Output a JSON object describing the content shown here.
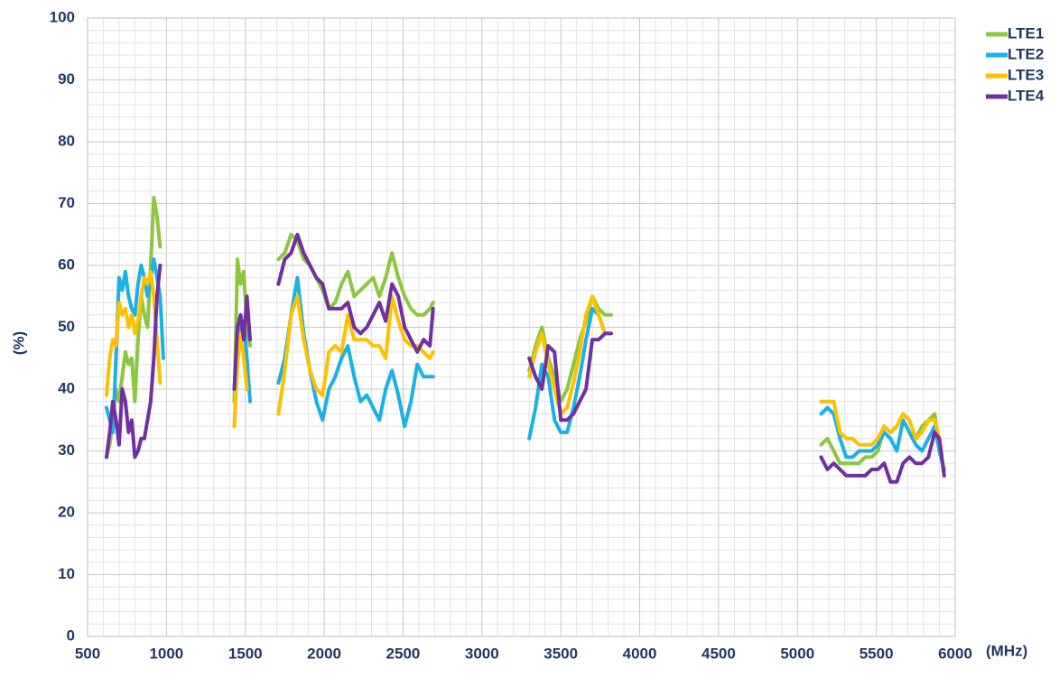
{
  "chart_data": {
    "type": "line",
    "x_label": "(MHz)",
    "y_label": "(%)",
    "x": [
      620,
      640,
      660,
      680,
      700,
      720,
      740,
      760,
      780,
      800,
      820,
      840,
      860,
      880,
      900,
      920,
      940,
      960,
      980,
      null,
      1430,
      1450,
      1470,
      1490,
      1510,
      1530,
      null,
      1710,
      1750,
      1790,
      1830,
      1870,
      1910,
      1950,
      1990,
      2030,
      2070,
      2110,
      2150,
      2190,
      2230,
      2270,
      2310,
      2350,
      2390,
      2430,
      2470,
      2510,
      2550,
      2590,
      2630,
      2670,
      2690,
      null,
      3300,
      3340,
      3380,
      3420,
      3460,
      3500,
      3540,
      3580,
      3620,
      3660,
      3700,
      3740,
      3780,
      3820,
      null,
      5150,
      5190,
      5230,
      5270,
      5310,
      5350,
      5390,
      5430,
      5470,
      5510,
      5550,
      5590,
      5630,
      5670,
      5710,
      5750,
      5790,
      5830,
      5870,
      5900,
      5930
    ],
    "series": [
      {
        "name": "LTE1",
        "color": "#8dc63f",
        "values": [
          29,
          31,
          35,
          40,
          38,
          42,
          46,
          44,
          45,
          38,
          48,
          55,
          52,
          50,
          60,
          71,
          68,
          63,
          null,
          null,
          38,
          61,
          57,
          59,
          50,
          47,
          null,
          61,
          62,
          65,
          64,
          61,
          60,
          58,
          56,
          53,
          54,
          57,
          59,
          55,
          56,
          57,
          58,
          55,
          58,
          62,
          58,
          55,
          53,
          52,
          52,
          53,
          54,
          null,
          43,
          47,
          50,
          45,
          42,
          38,
          40,
          44,
          48,
          51,
          55,
          53,
          52,
          52,
          null,
          31,
          32,
          30,
          28,
          28,
          28,
          28,
          29,
          29,
          30,
          34,
          33,
          34,
          36,
          35,
          32,
          34,
          35,
          36,
          30,
          27
        ]
      },
      {
        "name": "LTE2",
        "color": "#1ab0e8",
        "values": [
          37,
          35,
          33,
          45,
          58,
          56,
          59,
          55,
          53,
          52,
          57,
          60,
          58,
          55,
          58,
          61,
          58,
          55,
          45,
          null,
          40,
          47,
          50,
          51,
          45,
          38,
          null,
          41,
          45,
          52,
          58,
          49,
          43,
          38,
          35,
          40,
          42,
          45,
          47,
          42,
          38,
          39,
          37,
          35,
          40,
          43,
          39,
          34,
          38,
          44,
          42,
          42,
          42,
          null,
          32,
          37,
          44,
          42,
          35,
          33,
          33,
          37,
          42,
          48,
          53,
          52,
          49,
          null,
          null,
          36,
          37,
          36,
          32,
          29,
          29,
          30,
          30,
          30,
          31,
          33,
          32,
          30,
          35,
          33,
          31,
          30,
          32,
          34,
          30,
          27
        ]
      },
      {
        "name": "LTE3",
        "color": "#ffc000",
        "values": [
          39,
          45,
          48,
          47,
          54,
          52,
          53,
          50,
          52,
          49,
          51,
          55,
          58,
          57,
          59,
          55,
          48,
          41,
          null,
          null,
          34,
          44,
          49,
          45,
          40,
          null,
          null,
          36,
          43,
          52,
          55,
          48,
          43,
          40,
          39,
          46,
          47,
          46,
          52,
          48,
          48,
          48,
          47,
          47,
          45,
          55,
          51,
          48,
          47,
          47,
          46,
          45,
          46,
          null,
          42,
          46,
          49,
          44,
          40,
          36,
          37,
          41,
          46,
          52,
          55,
          52,
          49,
          null,
          null,
          38,
          38,
          38,
          33,
          32,
          32,
          31,
          31,
          31,
          32,
          34,
          33,
          34,
          36,
          35,
          32,
          33,
          35,
          35,
          32,
          26
        ]
      },
      {
        "name": "LTE4",
        "color": "#7030a0",
        "values": [
          29,
          33,
          38,
          35,
          31,
          40,
          38,
          33,
          35,
          29,
          30,
          32,
          32,
          35,
          38,
          45,
          55,
          60,
          null,
          null,
          40,
          50,
          52,
          48,
          55,
          48,
          null,
          57,
          61,
          62,
          65,
          62,
          60,
          58,
          57,
          53,
          53,
          53,
          54,
          50,
          49,
          50,
          52,
          54,
          51,
          57,
          55,
          50,
          48,
          46,
          48,
          47,
          53,
          null,
          45,
          42,
          40,
          47,
          46,
          35,
          35,
          36,
          38,
          40,
          48,
          48,
          49,
          49,
          null,
          29,
          27,
          28,
          27,
          26,
          26,
          26,
          26,
          27,
          27,
          28,
          25,
          25,
          28,
          29,
          28,
          28,
          29,
          33,
          32,
          26
        ]
      }
    ],
    "xlim": [
      500,
      6000
    ],
    "xticks": [
      500,
      1000,
      1500,
      2000,
      2500,
      3000,
      3500,
      4000,
      4500,
      5000,
      5500,
      6000
    ],
    "ylim": [
      0,
      100
    ],
    "yticks": [
      0,
      10,
      20,
      30,
      40,
      50,
      60,
      70,
      80,
      90,
      100
    ],
    "grid": true,
    "legend": "top-right"
  }
}
